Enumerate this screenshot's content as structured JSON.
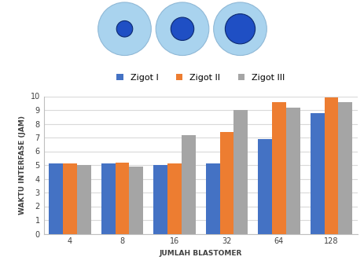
{
  "chart_data": {
    "type": "bar",
    "categories": [
      "4",
      "8",
      "16",
      "32",
      "64",
      "128"
    ],
    "series": [
      {
        "name": "Zigot I",
        "color": "#4472c4",
        "values": [
          5.1,
          5.1,
          5.0,
          5.1,
          6.9,
          8.8
        ]
      },
      {
        "name": "Zigot II",
        "color": "#ed7d31",
        "values": [
          5.1,
          5.2,
          5.1,
          7.4,
          9.6,
          9.9
        ]
      },
      {
        "name": "Zigot III",
        "color": "#a5a5a5",
        "values": [
          5.0,
          4.9,
          7.2,
          9.0,
          9.2,
          9.6
        ]
      }
    ],
    "x_label": "JUMLAH BLASTOMER",
    "y_label": "WAKTU INTERFASE (JAM)",
    "ylim": [
      0,
      10
    ],
    "yticks": [
      0,
      1,
      2,
      3,
      4,
      5,
      6,
      7,
      8,
      9,
      10
    ],
    "grid": true,
    "legend": "upper center"
  }
}
